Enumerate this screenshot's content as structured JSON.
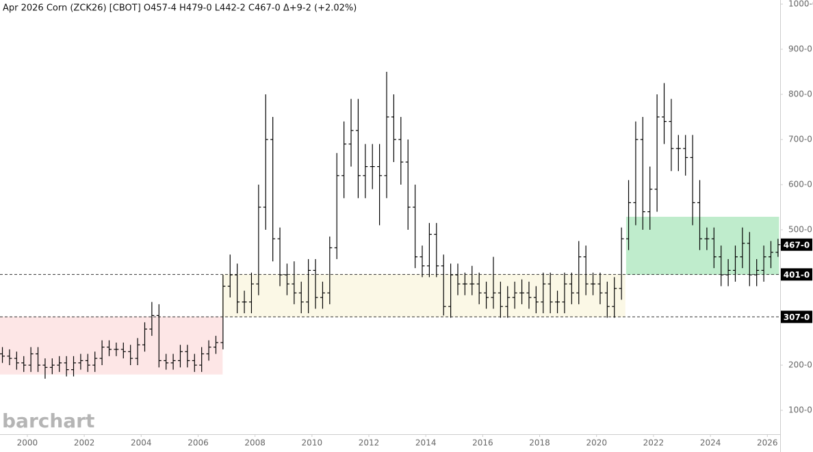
{
  "chart_data": {
    "type": "ohlc",
    "title": "Apr 2026 Corn (ZCK26) [CBOT] O457-4 H479-0 L442-2 C467-0 Δ+9-2 (+2.02%)",
    "watermark": "barchart",
    "color": "#000000",
    "x": [
      1999.125,
      1999.375,
      1999.625,
      1999.875,
      2000.125,
      2000.375,
      2000.625,
      2000.875,
      2001.125,
      2001.375,
      2001.625,
      2001.875,
      2002.125,
      2002.375,
      2002.625,
      2002.875,
      2003.125,
      2003.375,
      2003.625,
      2003.875,
      2004.125,
      2004.375,
      2004.625,
      2004.875,
      2005.125,
      2005.375,
      2005.625,
      2005.875,
      2006.125,
      2006.375,
      2006.625,
      2006.875,
      2007.125,
      2007.375,
      2007.625,
      2007.875,
      2008.125,
      2008.375,
      2008.625,
      2008.875,
      2009.125,
      2009.375,
      2009.625,
      2009.875,
      2010.125,
      2010.375,
      2010.625,
      2010.875,
      2011.125,
      2011.375,
      2011.625,
      2011.875,
      2012.125,
      2012.375,
      2012.625,
      2012.875,
      2013.125,
      2013.375,
      2013.625,
      2013.875,
      2014.125,
      2014.375,
      2014.625,
      2014.875,
      2015.125,
      2015.375,
      2015.625,
      2015.875,
      2016.125,
      2016.375,
      2016.625,
      2016.875,
      2017.125,
      2017.375,
      2017.625,
      2017.875,
      2018.125,
      2018.375,
      2018.625,
      2018.875,
      2019.125,
      2019.375,
      2019.625,
      2019.875,
      2020.125,
      2020.375,
      2020.625,
      2020.875,
      2021.125,
      2021.375,
      2021.625,
      2021.875,
      2022.125,
      2022.375,
      2022.625,
      2022.875,
      2023.125,
      2023.375,
      2023.625,
      2023.875,
      2024.125,
      2024.375,
      2024.625,
      2024.875,
      2025.125,
      2025.375,
      2025.625,
      2025.875,
      2026.125,
      2026.375
    ],
    "open": [
      225,
      220,
      215,
      205,
      200,
      225,
      200,
      195,
      200,
      205,
      190,
      205,
      210,
      200,
      215,
      240,
      235,
      235,
      230,
      215,
      245,
      280,
      310,
      210,
      205,
      210,
      230,
      210,
      200,
      225,
      240,
      250,
      375,
      400,
      340,
      340,
      380,
      550,
      700,
      480,
      400,
      380,
      360,
      340,
      410,
      350,
      360,
      460,
      620,
      690,
      720,
      620,
      640,
      640,
      620,
      750,
      700,
      650,
      550,
      440,
      420,
      490,
      420,
      330,
      400,
      380,
      380,
      380,
      360,
      350,
      360,
      330,
      350,
      360,
      360,
      350,
      340,
      380,
      340,
      340,
      380,
      360,
      440,
      380,
      380,
      360,
      330,
      370,
      480,
      560,
      700,
      540,
      590,
      750,
      740,
      680,
      680,
      660,
      560,
      480,
      480,
      440,
      400,
      410,
      440,
      470,
      400,
      410,
      440,
      450
    ],
    "high": [
      240,
      235,
      230,
      220,
      240,
      240,
      215,
      215,
      220,
      220,
      220,
      225,
      225,
      230,
      255,
      255,
      250,
      250,
      245,
      260,
      295,
      340,
      335,
      225,
      225,
      245,
      245,
      225,
      240,
      255,
      265,
      400,
      445,
      425,
      365,
      405,
      600,
      800,
      750,
      505,
      425,
      430,
      385,
      435,
      435,
      385,
      485,
      670,
      740,
      790,
      790,
      690,
      690,
      690,
      850,
      800,
      750,
      700,
      600,
      465,
      515,
      515,
      445,
      425,
      425,
      405,
      420,
      405,
      385,
      440,
      385,
      375,
      385,
      390,
      385,
      375,
      405,
      405,
      365,
      405,
      405,
      475,
      465,
      405,
      405,
      385,
      395,
      505,
      610,
      740,
      750,
      640,
      800,
      825,
      790,
      710,
      710,
      710,
      610,
      505,
      505,
      465,
      435,
      465,
      505,
      495,
      435,
      465,
      475,
      480
    ],
    "low": [
      205,
      200,
      190,
      185,
      185,
      185,
      170,
      180,
      185,
      175,
      175,
      190,
      185,
      185,
      200,
      220,
      220,
      215,
      200,
      200,
      230,
      265,
      195,
      190,
      190,
      195,
      195,
      185,
      185,
      210,
      225,
      235,
      350,
      315,
      315,
      315,
      355,
      500,
      430,
      375,
      355,
      335,
      315,
      315,
      325,
      325,
      335,
      435,
      570,
      640,
      570,
      570,
      590,
      510,
      570,
      650,
      600,
      500,
      415,
      395,
      395,
      395,
      310,
      305,
      355,
      355,
      355,
      335,
      325,
      325,
      305,
      305,
      325,
      335,
      325,
      315,
      315,
      315,
      315,
      315,
      335,
      335,
      355,
      355,
      335,
      305,
      305,
      345,
      455,
      510,
      500,
      500,
      540,
      690,
      630,
      630,
      620,
      510,
      455,
      455,
      415,
      375,
      375,
      385,
      415,
      375,
      375,
      385,
      415,
      440
    ],
    "close": [
      220,
      215,
      205,
      200,
      225,
      200,
      195,
      200,
      205,
      190,
      205,
      210,
      200,
      215,
      240,
      235,
      235,
      230,
      215,
      245,
      280,
      310,
      210,
      205,
      210,
      230,
      210,
      200,
      225,
      240,
      250,
      375,
      400,
      340,
      340,
      380,
      550,
      700,
      480,
      400,
      380,
      360,
      340,
      410,
      350,
      360,
      460,
      620,
      690,
      720,
      620,
      640,
      640,
      620,
      750,
      700,
      650,
      550,
      440,
      420,
      490,
      420,
      330,
      400,
      380,
      380,
      380,
      360,
      350,
      360,
      330,
      350,
      360,
      360,
      350,
      340,
      380,
      340,
      340,
      380,
      360,
      440,
      380,
      380,
      360,
      330,
      370,
      480,
      560,
      700,
      540,
      590,
      750,
      740,
      680,
      680,
      660,
      560,
      480,
      480,
      440,
      400,
      410,
      440,
      470,
      400,
      410,
      440,
      450,
      467
    ],
    "zones": [
      {
        "x0": 1999.04,
        "x1": 2006.85,
        "y0": 180,
        "y1": 307,
        "color": "#fde6e6"
      },
      {
        "x0": 2006.85,
        "x1": 2021.0,
        "y0": 307,
        "y1": 401,
        "color": "#fbf8e6"
      },
      {
        "x0": 2021.05,
        "x1": 2026.4,
        "y0": 401,
        "y1": 528,
        "color": "#bfeccc"
      }
    ],
    "price_labels": [
      {
        "value": 467,
        "label": "467-0"
      },
      {
        "value": 401,
        "label": "401-0"
      },
      {
        "value": 307,
        "label": "307-0"
      }
    ],
    "dashed_levels": [
      1,
      2
    ],
    "xlim": [
      1999.04,
      2026.45
    ],
    "ylim": [
      50,
      1000
    ],
    "xticks": [
      2000,
      2002,
      2004,
      2006,
      2008,
      2010,
      2012,
      2014,
      2016,
      2018,
      2020,
      2022,
      2024,
      2026
    ],
    "yticks": [
      {
        "value": 100,
        "label": "100-0"
      },
      {
        "value": 200,
        "label": "200-0"
      },
      {
        "value": 300,
        "label": "300-0"
      },
      {
        "value": 400,
        "label": "400-0"
      },
      {
        "value": 500,
        "label": "500-0"
      },
      {
        "value": 600,
        "label": "600-0"
      },
      {
        "value": 700,
        "label": "700-0"
      },
      {
        "value": 800,
        "label": "800-0"
      },
      {
        "value": 900,
        "label": "900-0"
      },
      {
        "value": 1000,
        "label": "1000-0"
      }
    ]
  }
}
